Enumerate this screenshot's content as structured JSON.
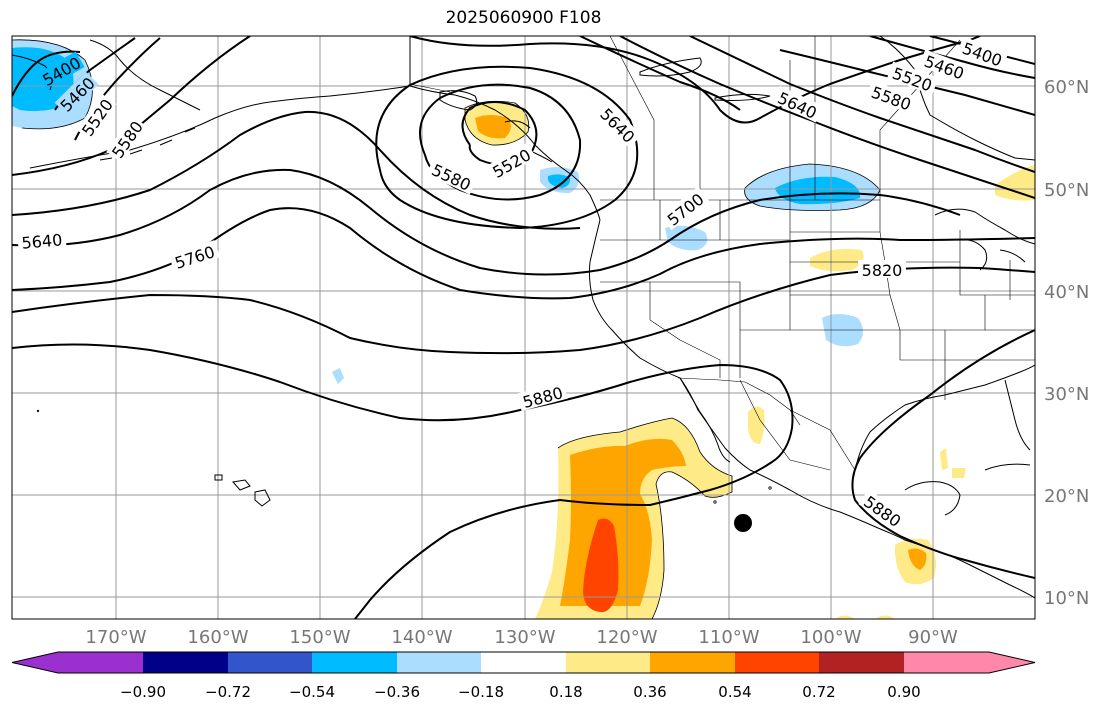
{
  "title": "2025060900 F108",
  "axes": {
    "lon_labels": [
      "170°W",
      "160°W",
      "150°W",
      "140°W",
      "130°W",
      "120°W",
      "110°W",
      "100°W",
      "90°W"
    ],
    "lat_labels": [
      "60°N",
      "50°N",
      "40°N",
      "30°N",
      "20°N",
      "10°N"
    ]
  },
  "contour_labels": [
    "5400",
    "5460",
    "5520",
    "5580",
    "5640",
    "5760",
    "5580",
    "5520",
    "5640",
    "5700",
    "5820",
    "5880",
    "5880",
    "5400",
    "5460",
    "5520",
    "5580",
    "5640"
  ],
  "colorbar": {
    "ticks": [
      "−0.90",
      "−0.72",
      "−0.54",
      "−0.36",
      "−0.18",
      "0.18",
      "0.36",
      "0.54",
      "0.72",
      "0.90"
    ],
    "colors": [
      "#9b30d0",
      "#000088",
      "#3355cc",
      "#00bbff",
      "#aaddff",
      "#ffffff",
      "#ffea88",
      "#ffa500",
      "#ff4400",
      "#b22222",
      "#ff88aa"
    ]
  },
  "marker": {
    "name": "tropical-cyclone-position",
    "color": "#000000"
  }
}
